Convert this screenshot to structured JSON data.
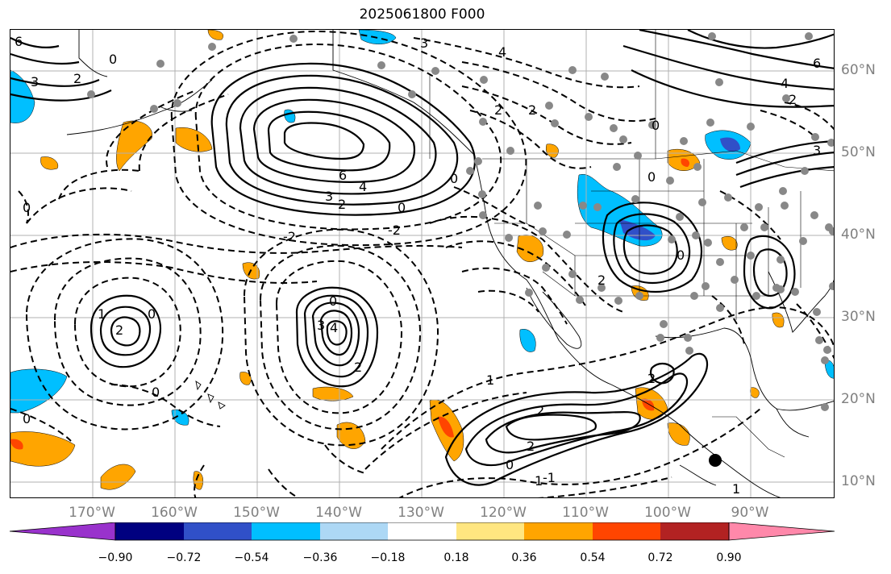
{
  "title": "2025061800 F000",
  "map": {
    "lon_labels": [
      "170°W",
      "160°W",
      "150°W",
      "140°W",
      "130°W",
      "120°W",
      "110°W",
      "100°W",
      "90°W"
    ],
    "lat_labels": [
      "60°N",
      "50°N",
      "40°N",
      "30°N",
      "20°N",
      "10°N"
    ]
  },
  "contour_labels": [
    "6",
    "4",
    "3",
    "2",
    "1",
    "0",
    "-1",
    "-2"
  ],
  "colorbar": {
    "ticks": [
      "−0.90",
      "−0.72",
      "−0.54",
      "−0.36",
      "−0.18",
      "0.18",
      "0.36",
      "0.54",
      "0.72",
      "0.90"
    ],
    "colors": [
      "#9932cc",
      "#000080",
      "#3050c8",
      "#00bfff",
      "#add8f5",
      "#ffffff",
      "#ffe680",
      "#ffa500",
      "#ff4500",
      "#b22222",
      "#ff88aa"
    ]
  }
}
